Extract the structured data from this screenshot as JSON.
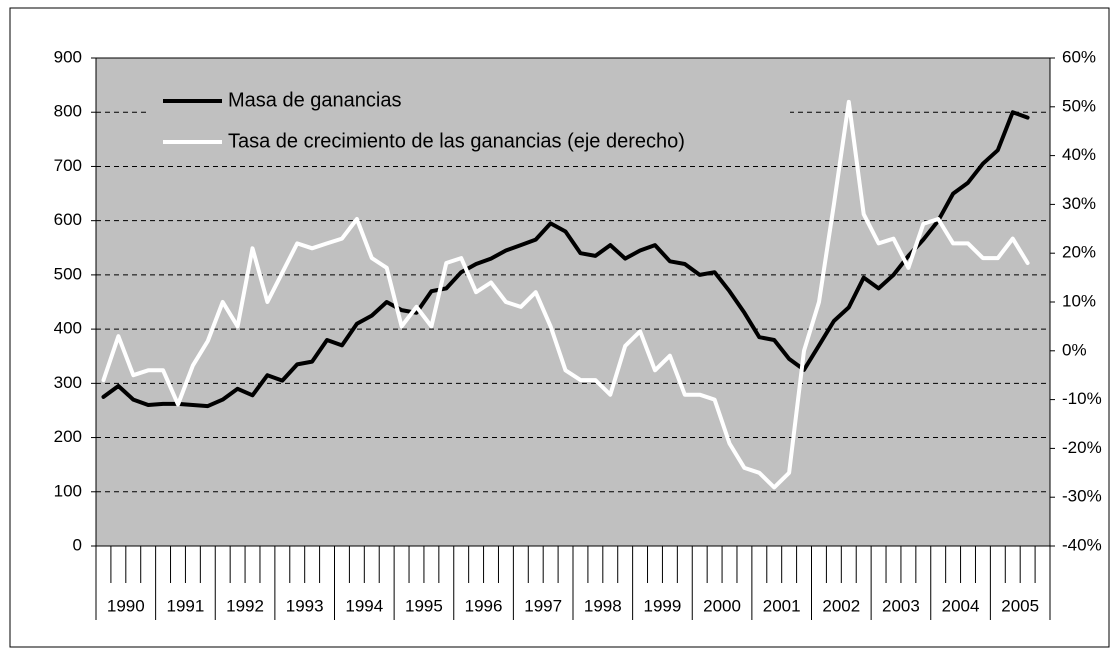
{
  "chart_data": {
    "type": "line",
    "categories": [
      "1990",
      null,
      null,
      null,
      "1991",
      null,
      null,
      null,
      "1992",
      null,
      null,
      null,
      "1993",
      null,
      null,
      null,
      "1994",
      null,
      null,
      null,
      "1995",
      null,
      null,
      null,
      "1996",
      null,
      null,
      null,
      "1997",
      null,
      null,
      null,
      "1998",
      null,
      null,
      null,
      "1999",
      null,
      null,
      null,
      "2000",
      null,
      null,
      null,
      "2001",
      null,
      null,
      null,
      "2002",
      null,
      null,
      null,
      "2003",
      null,
      null,
      null,
      "2004",
      null,
      null,
      null,
      "2005",
      null,
      null,
      null
    ],
    "series": [
      {
        "name": "Masa de ganancias",
        "color": "#000000",
        "values": [
          275,
          295,
          270,
          260,
          262,
          262,
          260,
          258,
          270,
          290,
          278,
          315,
          305,
          335,
          340,
          380,
          370,
          410,
          425,
          450,
          435,
          430,
          470,
          475,
          505,
          520,
          530,
          545,
          555,
          565,
          595,
          580,
          540,
          535,
          555,
          530,
          545,
          555,
          525,
          520,
          500,
          505,
          470,
          430,
          385,
          380,
          345,
          325,
          370,
          415,
          440,
          495,
          475,
          500,
          535,
          565,
          600,
          650,
          670,
          705,
          730,
          800,
          790,
          null
        ]
      },
      {
        "name": "Tasa de crecimiento de las ganancias (eje derecho)",
        "color": "#ffffff",
        "axis": "y2",
        "values": [
          -6,
          3,
          -5,
          -4,
          -4,
          -11,
          -3,
          2,
          10,
          5,
          21,
          10,
          16,
          22,
          21,
          22,
          23,
          27,
          19,
          17,
          5,
          9,
          5,
          18,
          19,
          12,
          14,
          10,
          9,
          12,
          5,
          -4,
          -6,
          -6,
          -9,
          1,
          4,
          -4,
          -1,
          -9,
          -9,
          -10,
          -19,
          -24,
          -25,
          -28,
          -25,
          0,
          10,
          30,
          51,
          28,
          22,
          23,
          17,
          26,
          27,
          22,
          22,
          19,
          19,
          23,
          18,
          null
        ]
      }
    ],
    "ylim": [
      0,
      900
    ],
    "yticks": [
      0,
      100,
      200,
      300,
      400,
      500,
      600,
      700,
      800,
      900
    ],
    "y2lim": [
      -40,
      60
    ],
    "y2ticks": [
      {
        "value": -40,
        "label": "-40%"
      },
      {
        "value": -30,
        "label": "-30%"
      },
      {
        "value": -20,
        "label": "-20%"
      },
      {
        "value": -10,
        "label": "-10%"
      },
      {
        "value": 0,
        "label": "0%"
      },
      {
        "value": 10,
        "label": "10%"
      },
      {
        "value": 20,
        "label": "20%"
      },
      {
        "value": 30,
        "label": "30%"
      },
      {
        "value": 40,
        "label": "40%"
      },
      {
        "value": 50,
        "label": "50%"
      },
      {
        "value": 60,
        "label": "60%"
      }
    ],
    "grid": true,
    "legend": "top-left"
  }
}
